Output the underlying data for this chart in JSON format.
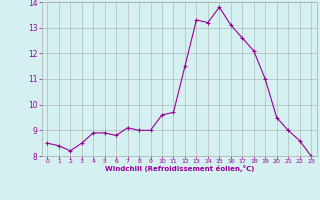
{
  "x": [
    0,
    1,
    2,
    3,
    4,
    5,
    6,
    7,
    8,
    9,
    10,
    11,
    12,
    13,
    14,
    15,
    16,
    17,
    18,
    19,
    20,
    21,
    22,
    23
  ],
  "y": [
    8.5,
    8.4,
    8.2,
    8.5,
    8.9,
    8.9,
    8.8,
    9.1,
    9.0,
    9.0,
    9.6,
    9.7,
    11.5,
    13.3,
    13.2,
    13.8,
    13.1,
    12.6,
    12.1,
    11.0,
    9.5,
    9.0,
    8.6,
    8.0
  ],
  "line_color": "#990099",
  "marker": "+",
  "marker_size": 3,
  "bg_color": "#d4f0f0",
  "grid_color": "#aaaaaa",
  "xlabel": "Windchill (Refroidissement éolien,°C)",
  "xlabel_color": "#990099",
  "tick_color": "#990099",
  "ylim": [
    8,
    14
  ],
  "yticks": [
    8,
    9,
    10,
    11,
    12,
    13,
    14
  ],
  "xlim": [
    -0.5,
    23.5
  ],
  "xticks": [
    0,
    1,
    2,
    3,
    4,
    5,
    6,
    7,
    8,
    9,
    10,
    11,
    12,
    13,
    14,
    15,
    16,
    17,
    18,
    19,
    20,
    21,
    22,
    23
  ]
}
